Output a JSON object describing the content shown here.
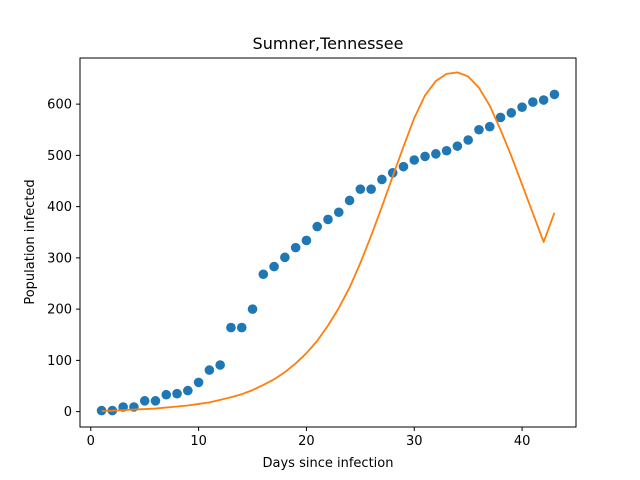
{
  "chart_data": {
    "type": "scatter+line",
    "title": "Sumner,Tennessee",
    "xlabel": "Days since infection",
    "ylabel": "Population infected",
    "xlim": [
      -1,
      45
    ],
    "ylim": [
      -30,
      690
    ],
    "xticks": [
      0,
      10,
      20,
      30,
      40
    ],
    "yticks": [
      0,
      100,
      200,
      300,
      400,
      500,
      600
    ],
    "grid": false,
    "legend": "none",
    "colors": {
      "scatter": "#1f77b4",
      "line": "#ff7f0e"
    },
    "scatter": {
      "x": [
        1,
        2,
        3,
        4,
        5,
        6,
        7,
        8,
        9,
        10,
        11,
        12,
        13,
        14,
        15,
        16,
        17,
        18,
        19,
        20,
        21,
        22,
        23,
        24,
        25,
        26,
        27,
        28,
        29,
        30,
        31,
        32,
        33,
        34,
        35,
        36,
        37,
        38,
        39,
        40,
        41,
        42,
        43
      ],
      "y": [
        2,
        2,
        9,
        9,
        21,
        21,
        33,
        35,
        41,
        57,
        81,
        91,
        164,
        164,
        200,
        268,
        283,
        301,
        320,
        334,
        361,
        375,
        389,
        412,
        434,
        434,
        453,
        466,
        478,
        491,
        498,
        503,
        509,
        518,
        530,
        550,
        556,
        574,
        583,
        594,
        604,
        608,
        619
      ]
    },
    "line": {
      "x": [
        1,
        2,
        3,
        4,
        5,
        6,
        7,
        8,
        9,
        10,
        11,
        12,
        13,
        14,
        15,
        16,
        17,
        18,
        19,
        20,
        21,
        22,
        23,
        24,
        25,
        26,
        27,
        28,
        29,
        30,
        31,
        32,
        33,
        34,
        35,
        36,
        37,
        38,
        39,
        40,
        41,
        42,
        43
      ],
      "y": [
        1,
        2,
        3,
        4,
        5,
        6,
        8,
        10,
        12,
        15,
        18,
        23,
        28,
        34,
        42,
        52,
        63,
        77,
        94,
        114,
        138,
        168,
        202,
        242,
        290,
        343,
        400,
        459,
        517,
        573,
        617,
        645,
        659,
        662,
        654,
        632,
        597,
        550,
        499,
        443,
        387,
        331,
        388
      ]
    }
  }
}
